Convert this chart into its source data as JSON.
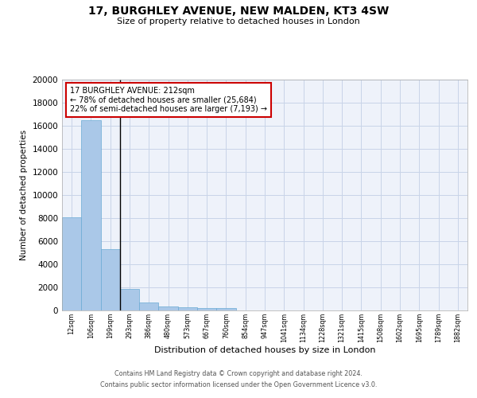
{
  "title": "17, BURGHLEY AVENUE, NEW MALDEN, KT3 4SW",
  "subtitle": "Size of property relative to detached houses in London",
  "xlabel": "Distribution of detached houses by size in London",
  "ylabel": "Number of detached properties",
  "categories": [
    "12sqm",
    "106sqm",
    "199sqm",
    "293sqm",
    "386sqm",
    "480sqm",
    "573sqm",
    "667sqm",
    "760sqm",
    "854sqm",
    "947sqm",
    "1041sqm",
    "1134sqm",
    "1228sqm",
    "1321sqm",
    "1415sqm",
    "1508sqm",
    "1602sqm",
    "1695sqm",
    "1789sqm",
    "1882sqm"
  ],
  "values": [
    8100,
    16500,
    5300,
    1850,
    700,
    375,
    290,
    230,
    190,
    0,
    0,
    0,
    0,
    0,
    0,
    0,
    0,
    0,
    0,
    0,
    0
  ],
  "bar_color": "#aac8e8",
  "bar_edge_color": "#6aaad4",
  "vline_x_idx": 2,
  "vline_color": "#000000",
  "annotation_text": "17 BURGHLEY AVENUE: 212sqm\n← 78% of detached houses are smaller (25,684)\n22% of semi-detached houses are larger (7,193) →",
  "annotation_box_color": "#ffffff",
  "annotation_box_edge": "#cc0000",
  "ylim": [
    0,
    20000
  ],
  "yticks": [
    0,
    2000,
    4000,
    6000,
    8000,
    10000,
    12000,
    14000,
    16000,
    18000,
    20000
  ],
  "grid_color": "#c8d4e8",
  "bg_color": "#eef2fa",
  "footer_line1": "Contains HM Land Registry data © Crown copyright and database right 2024.",
  "footer_line2": "Contains public sector information licensed under the Open Government Licence v3.0."
}
